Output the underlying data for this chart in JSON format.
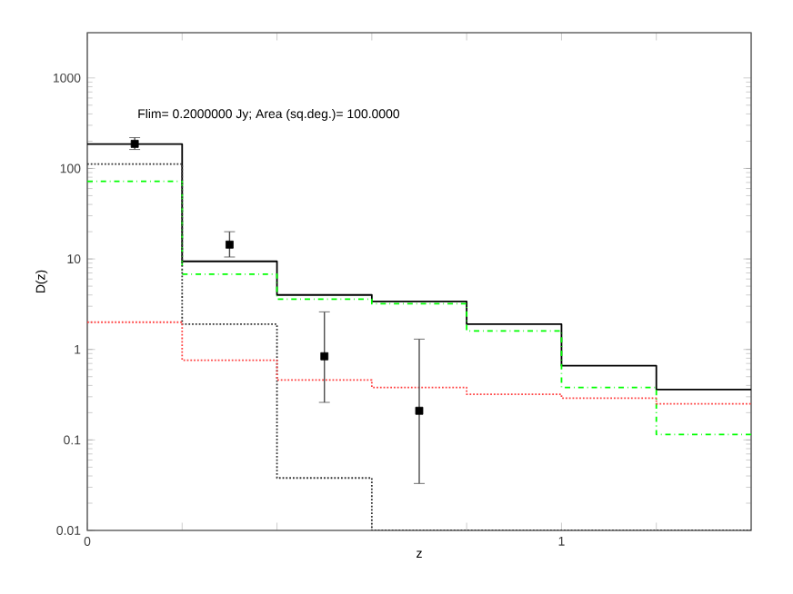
{
  "chart_data": {
    "type": "histogram",
    "xlabel": "z",
    "ylabel": "D(z)",
    "annotations": [
      "Flim=  0.2000000     Jy;  Area (sq.deg.)=   100.0000"
    ],
    "bins": [
      0,
      0.2,
      0.4,
      0.6,
      0.8,
      1.0,
      1.2,
      1.4
    ],
    "series": [
      {
        "color": "#000000",
        "line_style": "solid",
        "values": [
          186,
          9.4,
          4.0,
          3.4,
          1.9,
          0.66,
          0.36
        ]
      },
      {
        "color": "#00ff00",
        "line_style": "dashdot",
        "values": [
          72,
          6.8,
          3.6,
          3.2,
          1.6,
          0.38,
          0.115
        ]
      },
      {
        "color": "#333333",
        "line_style": "dotted",
        "values": [
          112,
          1.9,
          0.038,
          null,
          null,
          null,
          null
        ]
      },
      {
        "color": "#ff4040",
        "line_style": "dotted",
        "values": [
          2.0,
          0.76,
          0.46,
          0.38,
          0.32,
          0.29,
          0.25
        ]
      },
      {
        "type": "scatter",
        "marker": "square",
        "color": "#000000",
        "x": [
          0.1,
          0.3,
          0.5,
          0.7
        ],
        "values": [
          187,
          14.4,
          0.84,
          0.21
        ],
        "errors": [
          [
            162,
            219
          ],
          [
            10.5,
            20
          ],
          [
            0.26,
            2.6
          ],
          [
            0.033,
            1.3
          ]
        ]
      }
    ],
    "xlim": [
      0,
      1.4
    ],
    "ylim": [
      0.01,
      3162
    ],
    "xticks": [
      0,
      {
        "value": 0.2,
        "label": null
      },
      {
        "value": 0.4,
        "label": null
      },
      {
        "value": 0.6,
        "label": null
      },
      {
        "value": 0.8,
        "label": null
      },
      1,
      {
        "value": 1.2,
        "label": null
      }
    ],
    "yticks": [
      0.01,
      0.1,
      1,
      10,
      100,
      1000
    ],
    "log": "y"
  }
}
